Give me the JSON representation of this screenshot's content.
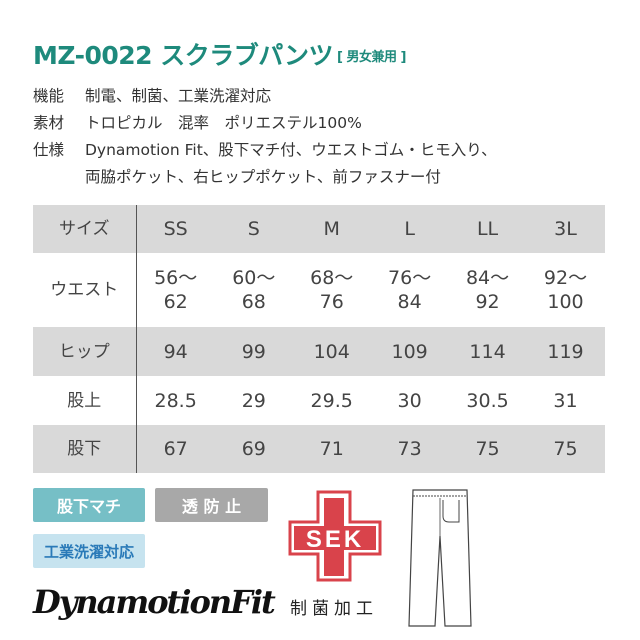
{
  "title": {
    "main": "MZ-0022 スクラブパンツ",
    "sub": "[ 男女兼用 ]"
  },
  "specs": [
    {
      "key": "機能",
      "value": "制電、制菌、工業洗濯対応"
    },
    {
      "key": "素材",
      "value": "トロピカル　混率　ポリエステル100%"
    },
    {
      "key": "仕様",
      "value": "Dynamotion Fit、股下マチ付、ウエストゴム・ヒモ入り、"
    },
    {
      "key": "",
      "value": "両脇ポケット、右ヒップポケット、前ファスナー付"
    }
  ],
  "size_table": {
    "rows": [
      {
        "label": "サイズ",
        "cells": [
          "SS",
          "S",
          "M",
          "L",
          "LL",
          "3L"
        ]
      },
      {
        "label": "ウエスト",
        "cells": [
          "56～\n62",
          "60～\n68",
          "68～\n76",
          "76～\n84",
          "84～\n92",
          "92～\n100"
        ]
      },
      {
        "label": "ヒップ",
        "cells": [
          "94",
          "99",
          "104",
          "109",
          "114",
          "119"
        ]
      },
      {
        "label": "股上",
        "cells": [
          "28.5",
          "29",
          "29.5",
          "30",
          "30.5",
          "31"
        ]
      },
      {
        "label": "股下",
        "cells": [
          "67",
          "69",
          "71",
          "73",
          "75",
          "75"
        ]
      }
    ]
  },
  "badges": [
    {
      "label": "股下マチ",
      "bg": "#76bfc6",
      "color": "#ffffff"
    },
    {
      "label": "透 防 止",
      "bg": "#a8a8a8",
      "color": "#ffffff"
    },
    {
      "label": "工業洗濯対応",
      "bg": "#c6e3ef",
      "color": "#2a7ab8"
    }
  ],
  "logo": "DynamotionFit",
  "sek": {
    "mark": "SEK",
    "caption": "制菌加工",
    "color": "#d9434b"
  },
  "colors": {
    "title": "#1e8a7c",
    "row_shade": "#d9d9d9"
  }
}
